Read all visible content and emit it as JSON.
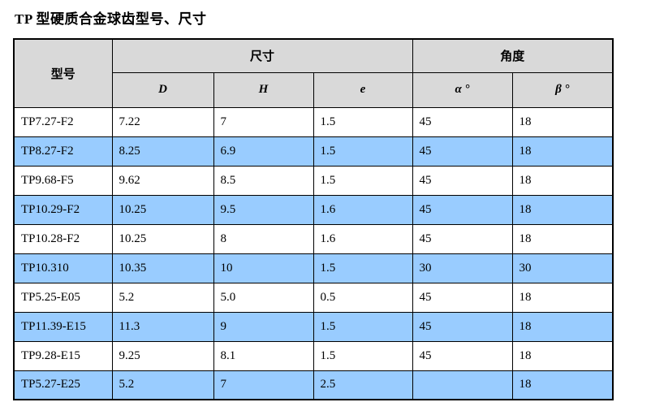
{
  "title": "TP 型硬质合金球齿型号、尺寸",
  "colors": {
    "header_bg": "#d9d9d9",
    "alt_row_bg": "#99ccff",
    "row_bg": "#ffffff",
    "border": "#000000",
    "text": "#000000"
  },
  "table": {
    "model_header": "型号",
    "size_group_header": "尺寸",
    "angle_group_header": "角度",
    "sub_headers": [
      "D",
      "H",
      "e",
      "α °",
      "β °"
    ],
    "rows": [
      [
        "TP7.27-F2",
        "7.22",
        "7",
        "1.5",
        "45",
        "18"
      ],
      [
        "TP8.27-F2",
        "8.25",
        "6.9",
        "1.5",
        "45",
        "18"
      ],
      [
        "TP9.68-F5",
        "9.62",
        "8.5",
        "1.5",
        "45",
        "18"
      ],
      [
        "TP10.29-F2",
        "10.25",
        "9.5",
        "1.6",
        "45",
        "18"
      ],
      [
        "TP10.28-F2",
        "10.25",
        "8",
        "1.6",
        "45",
        "18"
      ],
      [
        "TP10.310",
        "10.35",
        "10",
        "1.5",
        "30",
        "30"
      ],
      [
        "TP5.25-E05",
        "5.2",
        "5.0",
        "0.5",
        "45",
        "18"
      ],
      [
        "TP11.39-E15",
        "11.3",
        "9",
        "1.5",
        "45",
        "18"
      ],
      [
        "TP9.28-E15",
        "9.25",
        "8.1",
        "1.5",
        "45",
        "18"
      ],
      [
        "TP5.27-E25",
        "5.2",
        "7",
        "2.5",
        "",
        "18"
      ]
    ]
  }
}
